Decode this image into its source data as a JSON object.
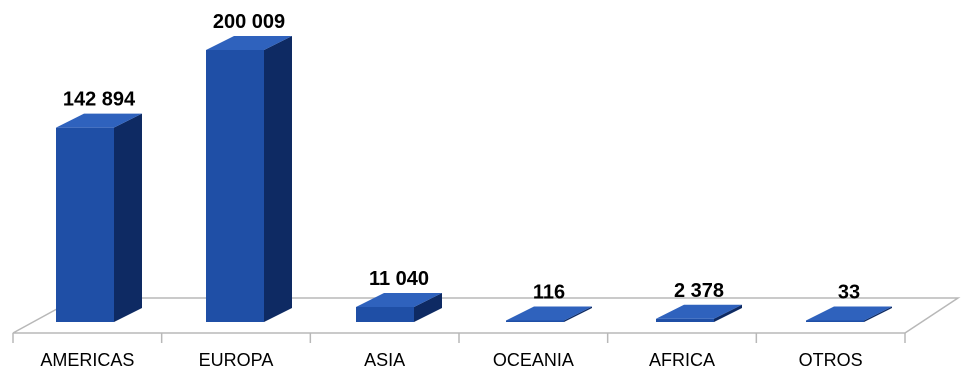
{
  "chart_data": {
    "type": "bar",
    "style": "3d-column",
    "categories": [
      "AMERICAS",
      "EUROPA",
      "ASIA",
      "OCEANIA",
      "AFRICA",
      "OTROS"
    ],
    "values": [
      142894,
      200009,
      11040,
      116,
      2378,
      33
    ],
    "data_labels": [
      "142 894",
      "200 009",
      "11 040",
      "116",
      "2 378",
      "33"
    ],
    "title": "",
    "xlabel": "",
    "ylabel": "",
    "ylim": [
      0,
      200009
    ],
    "grid": false,
    "legend": "none",
    "colors": {
      "front": "#1f4fa6",
      "side": "#0e2a63",
      "top": "#2f62bd",
      "floor_line": "#b8b8b8"
    }
  }
}
